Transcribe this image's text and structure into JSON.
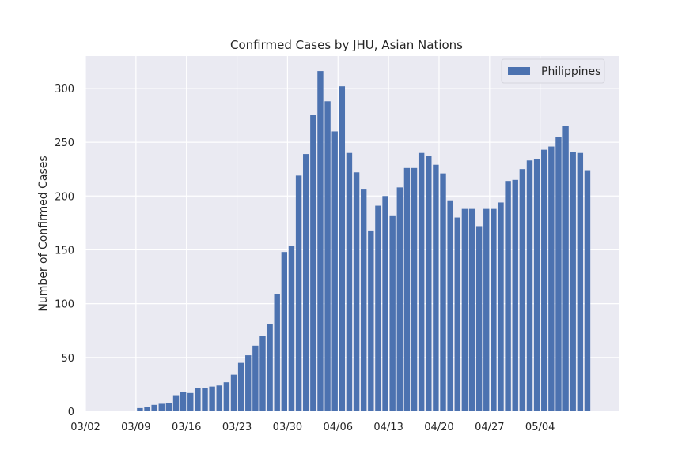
{
  "chart_data": {
    "type": "bar",
    "title": "Confirmed Cases by JHU, Asian Nations",
    "ylabel": "Number of Confirmed Cases",
    "xlabel": "",
    "ylim": [
      0,
      330
    ],
    "yticks": [
      0,
      50,
      100,
      150,
      200,
      250,
      300
    ],
    "grid": true,
    "legend_position": "top-right",
    "start_date": "03/02",
    "x_tick_labels": [
      "03/02",
      "03/09",
      "03/16",
      "03/23",
      "03/30",
      "04/06",
      "04/13",
      "04/20",
      "04/27",
      "05/04"
    ],
    "series": [
      {
        "name": "Philippines",
        "color": "#4c72b0",
        "values": [
          0,
          0,
          0,
          0,
          0,
          0,
          0,
          3,
          4,
          6,
          7,
          8,
          15,
          18,
          17,
          22,
          22,
          23,
          24,
          27,
          34,
          45,
          52,
          61,
          70,
          81,
          109,
          148,
          154,
          219,
          239,
          275,
          316,
          288,
          260,
          302,
          240,
          222,
          206,
          168,
          191,
          200,
          182,
          208,
          226,
          226,
          240,
          237,
          229,
          221,
          196,
          180,
          188,
          188,
          172,
          188,
          188,
          194,
          214,
          215,
          225,
          233,
          234,
          243,
          246,
          255,
          265,
          241,
          240,
          224
        ]
      }
    ]
  }
}
